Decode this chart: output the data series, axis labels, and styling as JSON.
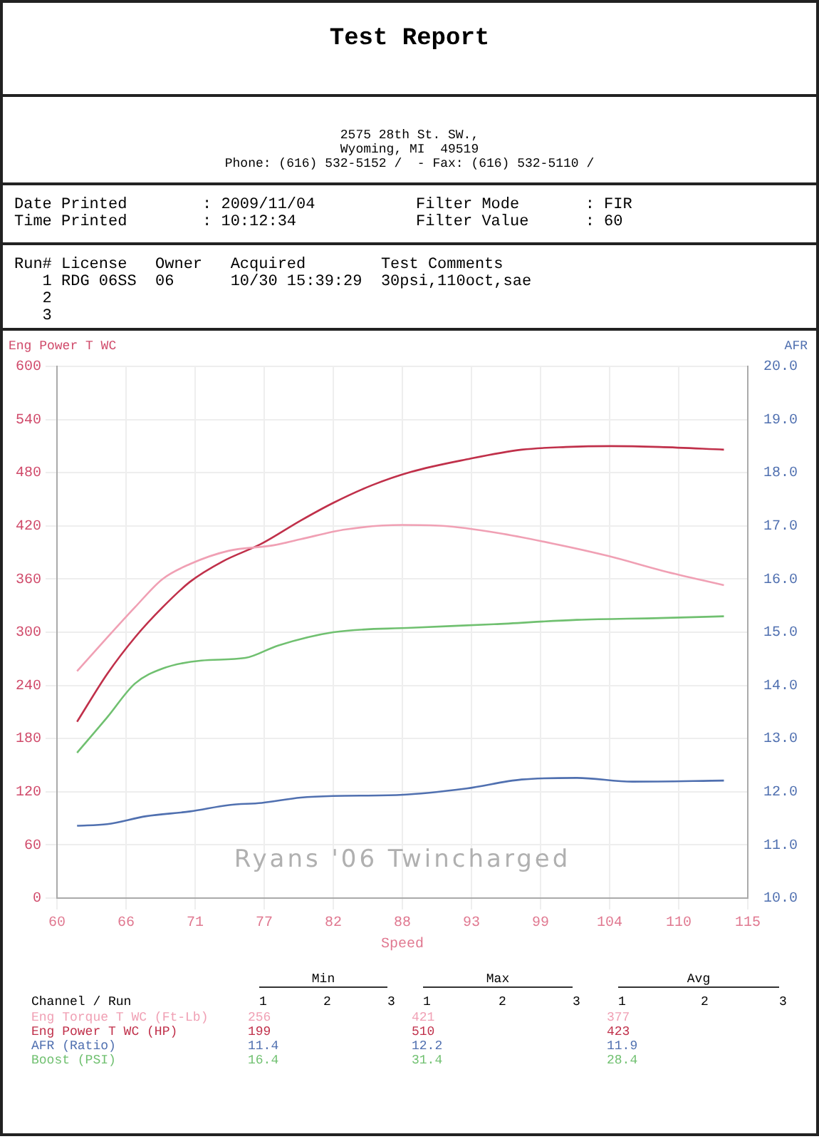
{
  "chart_data": {
    "type": "line",
    "title": "Test Report",
    "xlabel": "Speed",
    "ylabel": "Eng Power T WC",
    "y2label": "AFR",
    "xlim": [
      60,
      115
    ],
    "xticks": [
      60,
      {
        "value": 65.5,
        "label": "66"
      },
      71,
      {
        "value": 76.5,
        "label": "77"
      },
      82,
      {
        "value": 87.5,
        "label": "88"
      },
      93,
      {
        "value": 98.5,
        "label": "99"
      },
      104,
      {
        "value": 109.5,
        "label": "110"
      },
      115
    ],
    "ylim": [
      0,
      600
    ],
    "yticks": [
      0,
      60,
      120,
      180,
      240,
      300,
      360,
      420,
      480,
      540,
      600
    ],
    "y2lim": [
      10,
      20
    ],
    "y2ticks": [
      {
        "value": 10,
        "label": "10.0"
      },
      {
        "value": 11,
        "label": "11.0"
      },
      {
        "value": 12,
        "label": "12.0"
      },
      {
        "value": 13,
        "label": "13.0"
      },
      {
        "value": 14,
        "label": "14.0"
      },
      {
        "value": 15,
        "label": "15.0"
      },
      {
        "value": 16,
        "label": "16.0"
      },
      {
        "value": 17,
        "label": "17.0"
      },
      {
        "value": 18,
        "label": "18.0"
      },
      {
        "value": 19,
        "label": "19.0"
      },
      {
        "value": 20,
        "label": "20.0"
      }
    ],
    "grid": true,
    "legend": false,
    "marker": "none",
    "line_style": "solid",
    "series": [
      {
        "name": "Eng Torque T WC (Ft-Lb)",
        "color": "#f0a0b4",
        "x": [
          61.6,
          64.0,
          66.2,
          68.4,
          70.6,
          73.7,
          77.2,
          79.4,
          83.0,
          87.5,
          90.7,
          95.1,
          99.5,
          103.9,
          108.3,
          113.1
        ],
        "values": [
          256,
          294,
          328,
          360,
          377,
          392,
          398,
          405,
          416,
          421,
          420,
          412,
          400,
          386,
          369,
          353
        ]
      },
      {
        "name": "Eng Power T WC (HP)",
        "color": "#c0304a",
        "x": [
          61.6,
          64.0,
          66.2,
          68.4,
          70.6,
          73.2,
          76.3,
          79.4,
          82.0,
          85.1,
          88.2,
          92.6,
          97.0,
          100.5,
          104.1,
          108.0,
          113.1
        ],
        "values": [
          199,
          253,
          294,
          328,
          357,
          380,
          400,
          426,
          446,
          466,
          481,
          495,
          506,
          509,
          510,
          509,
          506
        ]
      },
      {
        "name": "AFR (Ratio)",
        "color": "#5070b0",
        "axis": "y2",
        "x": [
          61.6,
          64.0,
          67.1,
          70.6,
          73.7,
          76.3,
          79.4,
          82.0,
          87.3,
          92.6,
          97.0,
          101.4,
          105.8,
          113.1
        ],
        "values": [
          11.36,
          11.39,
          11.54,
          11.63,
          11.75,
          11.79,
          11.89,
          11.92,
          11.94,
          12.06,
          12.23,
          12.26,
          12.19,
          12.21
        ]
      },
      {
        "name": "Boost (PSI)",
        "color": "#70c070",
        "x": [
          61.6,
          64.0,
          66.2,
          68.4,
          71.5,
          75.0,
          77.6,
          82.0,
          88.2,
          94.8,
          101.4,
          108.0,
          113.1
        ],
        "values": [
          164,
          204,
          242,
          259,
          268,
          271,
          285,
          300,
          305,
          309,
          314,
          316,
          318
        ]
      }
    ],
    "annotations": [
      "2575 28th St. SW.,",
      "Wyoming, MI  49519",
      "Phone: (616) 532-5152 /  - Fax: (616) 532-5110 /",
      "Date Printed        : 2009/11/04",
      "Time Printed        : 10:12:34",
      "Filter Mode       : FIR",
      "Filter Value      : 60",
      "Run# License   Owner   Acquired        Test Comments",
      "   1 RDG 06SS  06      10/30 15:39:29  30psi,110oct,sae",
      "   2",
      "   3",
      "Ryans '06 Twincharged",
      "Min",
      "Max",
      "Avg",
      "Channel / Run",
      "1",
      "2",
      "3",
      "256",
      "421",
      "377",
      "199",
      "510",
      "423",
      "11.4",
      "12.2",
      "11.9",
      "16.4",
      "31.4",
      "28.4"
    ]
  }
}
